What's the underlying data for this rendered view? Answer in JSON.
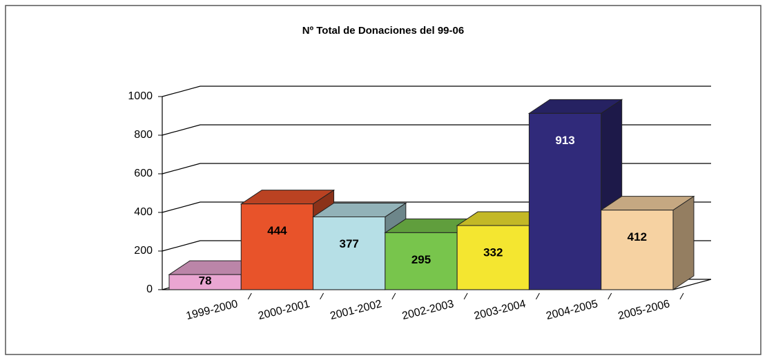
{
  "chart_data": {
    "type": "bar3d",
    "title": "Nº Total de Donaciones del 99-06",
    "categories": [
      "1999-2000",
      "2000-2001",
      "2001-2002",
      "2002-2003",
      "2003-2004",
      "2004-2005",
      "2005-2006"
    ],
    "values": [
      78,
      444,
      377,
      295,
      332,
      913,
      412
    ],
    "colors": [
      "#eaa6d2",
      "#e8532a",
      "#b6dfe6",
      "#78c54c",
      "#f4e630",
      "#302a7a",
      "#f6d2a2"
    ],
    "ylim": [
      0,
      1000
    ],
    "yticks": [
      0,
      200,
      400,
      600,
      800,
      1000
    ],
    "grid": true
  }
}
